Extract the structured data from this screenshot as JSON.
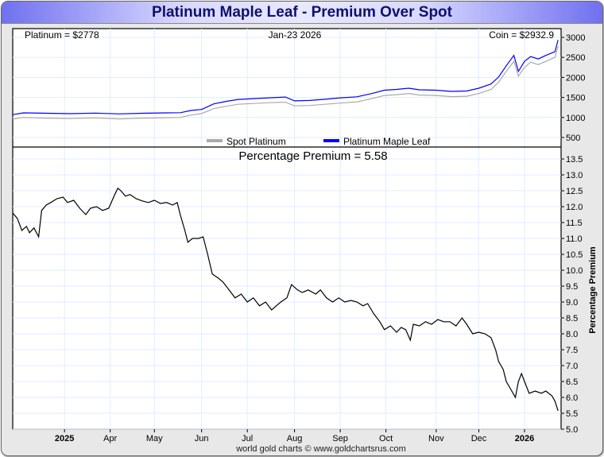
{
  "title": "Platinum Maple Leaf - Premium Over Spot",
  "footer": "world gold charts © www.goldchartsrus.com",
  "colors": {
    "spot": "#aaaaaa",
    "coin": "#0000ff",
    "premium": "#000000",
    "grid": "#ddeeff"
  },
  "chart_data": [
    {
      "type": "line",
      "title": "",
      "header_left": "Platinum = $2778",
      "header_center": "Jan-23  2026",
      "header_right": "Coin = $2932.9",
      "xlim": [
        0,
        360
      ],
      "ylim": [
        262,
        3218
      ],
      "yticks": [
        500,
        1000,
        1500,
        2000,
        2500,
        3000
      ],
      "legend": {
        "placement": "bottom-center",
        "entries": [
          "Spot Platinum",
          "Platinum Maple Leaf"
        ]
      },
      "series": [
        {
          "name": "Spot Platinum",
          "color": "#aaaaaa",
          "points": [
            [
              0,
              960
            ],
            [
              7,
              1000
            ],
            [
              23,
              985
            ],
            [
              38,
              975
            ],
            [
              54,
              990
            ],
            [
              70,
              965
            ],
            [
              85,
              985
            ],
            [
              101,
              995
            ],
            [
              110,
              1000
            ],
            [
              117,
              1060
            ],
            [
              124,
              1100
            ],
            [
              132,
              1220
            ],
            [
              140,
              1280
            ],
            [
              148,
              1330
            ],
            [
              158,
              1350
            ],
            [
              168,
              1370
            ],
            [
              179,
              1380
            ],
            [
              185,
              1290
            ],
            [
              195,
              1300
            ],
            [
              205,
              1330
            ],
            [
              215,
              1360
            ],
            [
              226,
              1390
            ],
            [
              236,
              1470
            ],
            [
              244,
              1550
            ],
            [
              252,
              1570
            ],
            [
              260,
              1600
            ],
            [
              267,
              1560
            ],
            [
              278,
              1550
            ],
            [
              288,
              1520
            ],
            [
              298,
              1530
            ],
            [
              306,
              1600
            ],
            [
              314,
              1700
            ],
            [
              319,
              1880
            ],
            [
              324,
              2150
            ],
            [
              329,
              2400
            ],
            [
              332,
              2030
            ],
            [
              336,
              2250
            ],
            [
              340,
              2380
            ],
            [
              345,
              2320
            ],
            [
              350,
              2400
            ],
            [
              356,
              2500
            ],
            [
              358,
              2778
            ]
          ]
        },
        {
          "name": "Platinum Maple Leaf",
          "color": "#0000ff",
          "points": [
            [
              0,
              1070
            ],
            [
              7,
              1115
            ],
            [
              23,
              1105
            ],
            [
              38,
              1095
            ],
            [
              54,
              1110
            ],
            [
              70,
              1090
            ],
            [
              85,
              1105
            ],
            [
              101,
              1115
            ],
            [
              110,
              1120
            ],
            [
              117,
              1175
            ],
            [
              124,
              1200
            ],
            [
              132,
              1340
            ],
            [
              140,
              1400
            ],
            [
              148,
              1450
            ],
            [
              158,
              1470
            ],
            [
              168,
              1490
            ],
            [
              179,
              1510
            ],
            [
              185,
              1415
            ],
            [
              195,
              1425
            ],
            [
              205,
              1455
            ],
            [
              215,
              1490
            ],
            [
              226,
              1515
            ],
            [
              236,
              1600
            ],
            [
              244,
              1680
            ],
            [
              252,
              1700
            ],
            [
              260,
              1730
            ],
            [
              267,
              1690
            ],
            [
              278,
              1680
            ],
            [
              288,
              1650
            ],
            [
              298,
              1660
            ],
            [
              306,
              1730
            ],
            [
              314,
              1835
            ],
            [
              319,
              2010
            ],
            [
              324,
              2290
            ],
            [
              329,
              2550
            ],
            [
              332,
              2150
            ],
            [
              336,
              2400
            ],
            [
              340,
              2520
            ],
            [
              345,
              2460
            ],
            [
              350,
              2550
            ],
            [
              356,
              2640
            ],
            [
              358,
              2932.9
            ]
          ]
        }
      ]
    },
    {
      "type": "line",
      "title": "Percentage Premium = 5.58",
      "ylabel": "Percentage Premium",
      "xlim": [
        0,
        360
      ],
      "ylim": [
        5.0,
        13.875
      ],
      "yticks": [
        5.0,
        5.5,
        6.0,
        6.5,
        7.0,
        7.5,
        8.0,
        8.5,
        9.0,
        9.5,
        10.0,
        10.5,
        11.0,
        11.5,
        12.0,
        12.5,
        13.0,
        13.5
      ],
      "xticks": [
        {
          "label": "2025",
          "x": 34,
          "bold": true
        },
        {
          "label": "Apr",
          "x": 64
        },
        {
          "label": "May",
          "x": 93
        },
        {
          "label": "Jun",
          "x": 124
        },
        {
          "label": "Jul",
          "x": 154
        },
        {
          "label": "Aug",
          "x": 185
        },
        {
          "label": "Sep",
          "x": 215
        },
        {
          "label": "Oct",
          "x": 245
        },
        {
          "label": "Nov",
          "x": 278
        },
        {
          "label": "Dec",
          "x": 306
        },
        {
          "label": "2026",
          "x": 336,
          "bold": true
        }
      ],
      "series": [
        {
          "name": "Percentage Premium",
          "color": "#000000",
          "points": [
            [
              0,
              11.8
            ],
            [
              3,
              11.63
            ],
            [
              6,
              11.25
            ],
            [
              9,
              11.38
            ],
            [
              11,
              11.18
            ],
            [
              14,
              11.33
            ],
            [
              17,
              11.05
            ],
            [
              19,
              11.88
            ],
            [
              22,
              12.05
            ],
            [
              25,
              12.13
            ],
            [
              29,
              12.25
            ],
            [
              33,
              12.3
            ],
            [
              36,
              12.13
            ],
            [
              40,
              12.2
            ],
            [
              44,
              11.95
            ],
            [
              48,
              11.75
            ],
            [
              51,
              11.95
            ],
            [
              55,
              12.0
            ],
            [
              59,
              11.88
            ],
            [
              63,
              11.95
            ],
            [
              67,
              12.38
            ],
            [
              69,
              12.58
            ],
            [
              71,
              12.5
            ],
            [
              74,
              12.33
            ],
            [
              77,
              12.38
            ],
            [
              81,
              12.25
            ],
            [
              85,
              12.18
            ],
            [
              89,
              12.13
            ],
            [
              93,
              12.2
            ],
            [
              97,
              12.1
            ],
            [
              101,
              12.13
            ],
            [
              105,
              12.05
            ],
            [
              108,
              12.13
            ],
            [
              110,
              11.75
            ],
            [
              113,
              11.25
            ],
            [
              115,
              10.88
            ],
            [
              118,
              11.0
            ],
            [
              122,
              11.0
            ],
            [
              125,
              11.05
            ],
            [
              128,
              10.5
            ],
            [
              131,
              9.88
            ],
            [
              135,
              9.75
            ],
            [
              138,
              9.63
            ],
            [
              142,
              9.38
            ],
            [
              146,
              9.13
            ],
            [
              150,
              9.25
            ],
            [
              154,
              9.0
            ],
            [
              158,
              9.13
            ],
            [
              162,
              8.88
            ],
            [
              166,
              9.0
            ],
            [
              170,
              8.75
            ],
            [
              173,
              8.88
            ],
            [
              176,
              9.0
            ],
            [
              180,
              9.13
            ],
            [
              183,
              9.55
            ],
            [
              187,
              9.38
            ],
            [
              190,
              9.3
            ],
            [
              194,
              9.38
            ],
            [
              199,
              9.25
            ],
            [
              202,
              9.38
            ],
            [
              206,
              9.13
            ],
            [
              210,
              9.0
            ],
            [
              214,
              9.13
            ],
            [
              218,
              9.0
            ],
            [
              222,
              9.05
            ],
            [
              226,
              9.0
            ],
            [
              230,
              8.88
            ],
            [
              233,
              8.95
            ],
            [
              237,
              8.63
            ],
            [
              241,
              8.38
            ],
            [
              244,
              8.13
            ],
            [
              248,
              8.25
            ],
            [
              252,
              8.05
            ],
            [
              255,
              8.2
            ],
            [
              258,
              8.13
            ],
            [
              261,
              7.8
            ],
            [
              263,
              8.3
            ],
            [
              267,
              8.25
            ],
            [
              271,
              8.38
            ],
            [
              275,
              8.3
            ],
            [
              279,
              8.45
            ],
            [
              283,
              8.38
            ],
            [
              287,
              8.38
            ],
            [
              291,
              8.25
            ],
            [
              295,
              8.5
            ],
            [
              298,
              8.3
            ],
            [
              302,
              8.0
            ],
            [
              306,
              8.05
            ],
            [
              310,
              8.0
            ],
            [
              314,
              7.88
            ],
            [
              317,
              7.5
            ],
            [
              319,
              7.13
            ],
            [
              322,
              6.88
            ],
            [
              324,
              6.5
            ],
            [
              327,
              6.25
            ],
            [
              330,
              6.0
            ],
            [
              332,
              6.5
            ],
            [
              334,
              6.75
            ],
            [
              336,
              6.5
            ],
            [
              339,
              6.13
            ],
            [
              343,
              6.2
            ],
            [
              347,
              6.13
            ],
            [
              350,
              6.2
            ],
            [
              354,
              6.05
            ],
            [
              356,
              5.88
            ],
            [
              358,
              5.58
            ]
          ]
        }
      ]
    }
  ]
}
